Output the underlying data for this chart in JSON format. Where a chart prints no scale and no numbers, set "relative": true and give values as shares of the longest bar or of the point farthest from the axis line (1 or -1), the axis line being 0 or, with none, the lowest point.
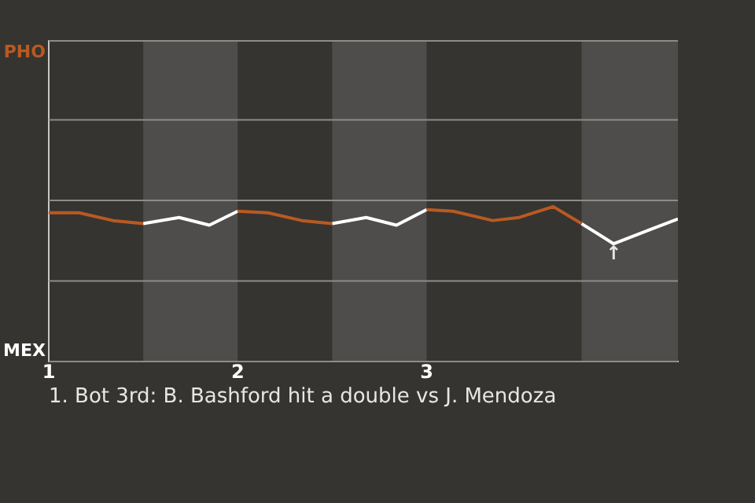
{
  "chart_data": {
    "type": "line",
    "relative": true,
    "xlim": [
      1,
      4.33
    ],
    "xticks": [
      1,
      2,
      3
    ],
    "marker": "none",
    "line_style": "solid",
    "ref_lines": [
      {
        "axis": "y",
        "value": 0,
        "label": "MEX",
        "color": "#8c8c8c"
      },
      {
        "axis": "y",
        "value": 0.52,
        "color": "#8c8c8c"
      },
      {
        "axis": "y",
        "value": 1.04,
        "color": "#8c8c8c"
      },
      {
        "axis": "y",
        "value": 1.56,
        "color": "#8c8c8c"
      },
      {
        "axis": "y",
        "value": 2.07,
        "label": "PHO",
        "color": "#8c8c8c"
      }
    ],
    "bands": [
      {
        "axis": "x",
        "from": 1.5,
        "to": 2,
        "color": "#4e4d4b"
      },
      {
        "axis": "x",
        "from": 2.5,
        "to": 3,
        "color": "#4e4d4b"
      },
      {
        "axis": "x",
        "from": 3.82,
        "to": 4.33,
        "color": "#4e4d4b"
      }
    ],
    "series": [
      {
        "color": "#b85a22",
        "x": [
          1,
          1.16,
          1.34,
          1.5,
          1.51,
          2,
          2.16,
          2.34,
          2.5,
          2.51,
          3,
          3.14,
          3.35,
          3.49,
          3.67,
          3.82
        ],
        "values": [
          0.96,
          0.96,
          0.91,
          0.89,
          null,
          0.97,
          0.96,
          0.91,
          0.89,
          null,
          0.98,
          0.97,
          0.91,
          0.93,
          1,
          0.89
        ]
      },
      {
        "color": "#ffffff",
        "x": [
          1.5,
          1.69,
          1.85,
          2,
          2.01,
          2.5,
          2.68,
          2.84,
          3,
          3.01,
          3.82,
          3.99,
          4.18,
          4.33
        ],
        "values": [
          0.89,
          0.93,
          0.88,
          0.97,
          null,
          0.89,
          0.93,
          0.88,
          0.98,
          null,
          0.89,
          0.76,
          0.85,
          0.92
        ]
      }
    ],
    "annotations": [
      {
        "text": "↑",
        "x": 3.99,
        "y": 0.76
      },
      "1. Bot 3rd: B. Bashford hit a double vs J. Mendoza"
    ]
  }
}
